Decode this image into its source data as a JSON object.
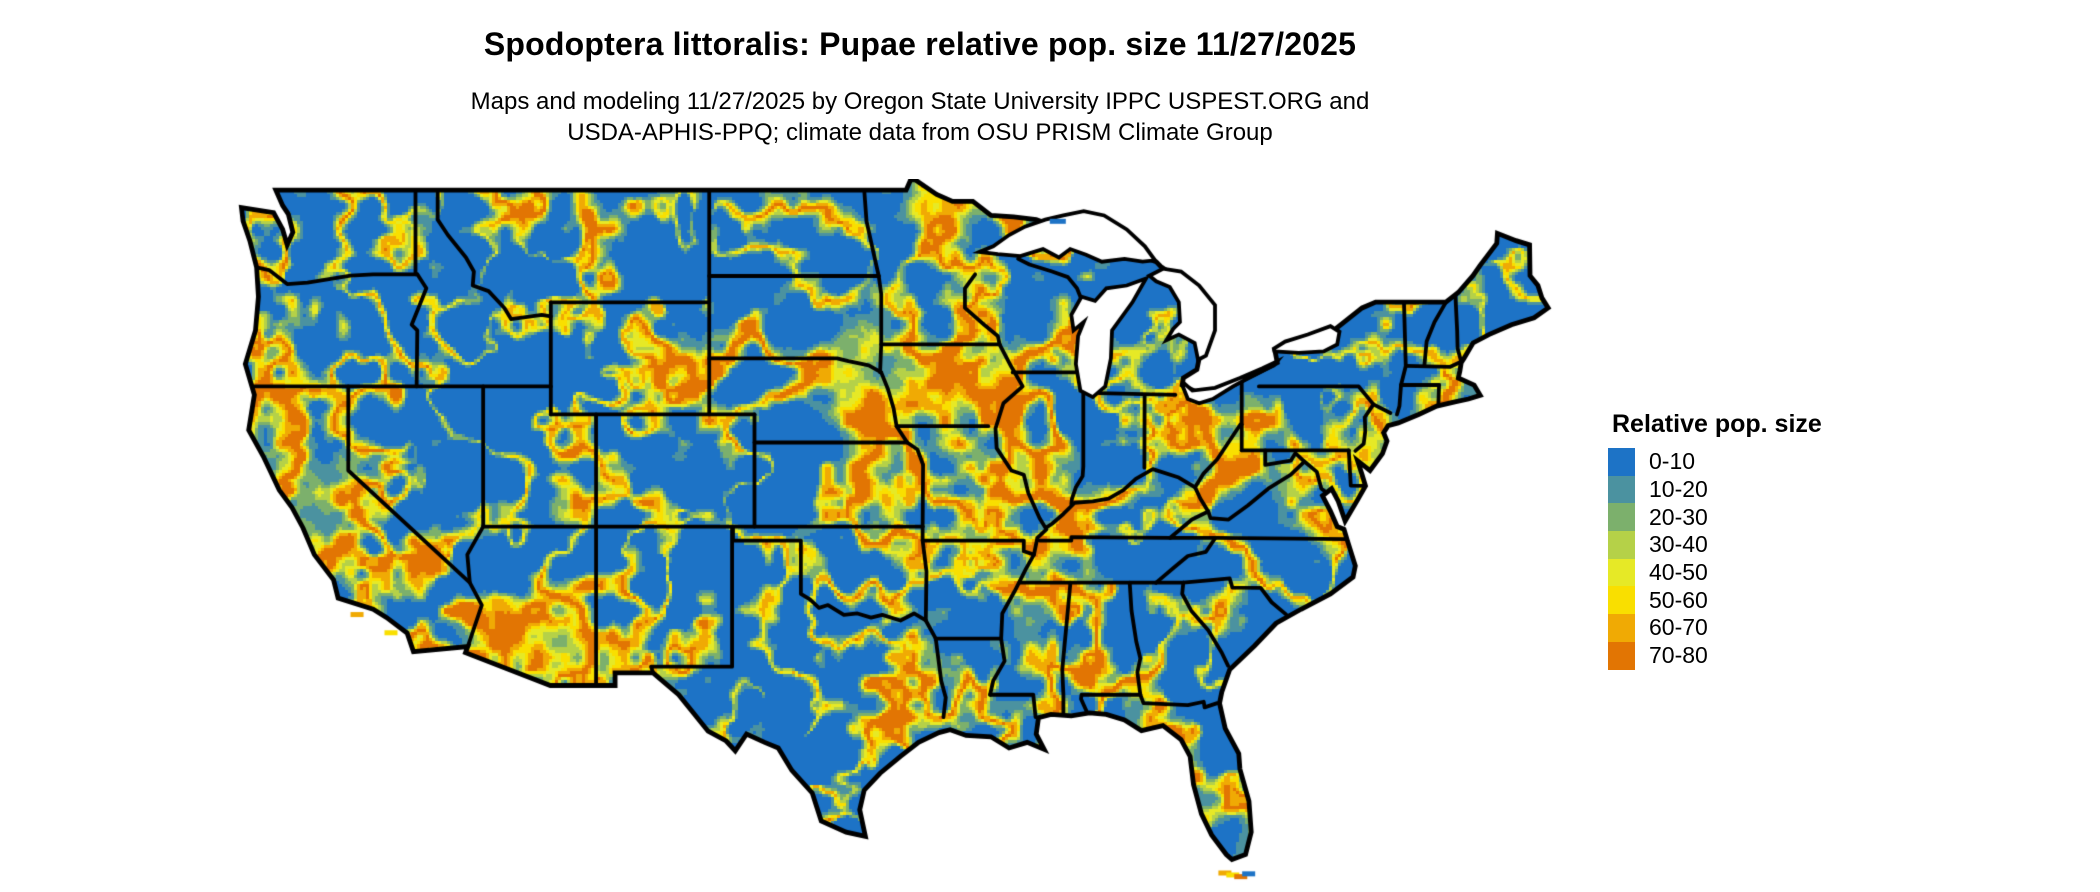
{
  "title": "Spodoptera littoralis: Pupae relative pop. size 11/27/2025",
  "subtitle": {
    "line1": "Maps and modeling 11/27/2025 by Oregon State University IPPC USPEST.ORG and",
    "line2": "USDA-APHIS-PPQ; climate data from OSU PRISM Climate Group"
  },
  "legend": {
    "title": "Relative pop. size",
    "entries": [
      {
        "label": "0-10",
        "color": "#1D73C6"
      },
      {
        "label": "10-20",
        "color": "#4B92A0"
      },
      {
        "label": "20-30",
        "color": "#7CB06C"
      },
      {
        "label": "30-40",
        "color": "#B5D148"
      },
      {
        "label": "40-50",
        "color": "#E6E926"
      },
      {
        "label": "50-60",
        "color": "#F9DF00"
      },
      {
        "label": "60-70",
        "color": "#F0AA04"
      },
      {
        "label": "70-80",
        "color": "#E27503"
      }
    ]
  },
  "map": {
    "region": "Contiguous United States",
    "border_color": "#000000",
    "water_color": "#FFFFFF"
  }
}
